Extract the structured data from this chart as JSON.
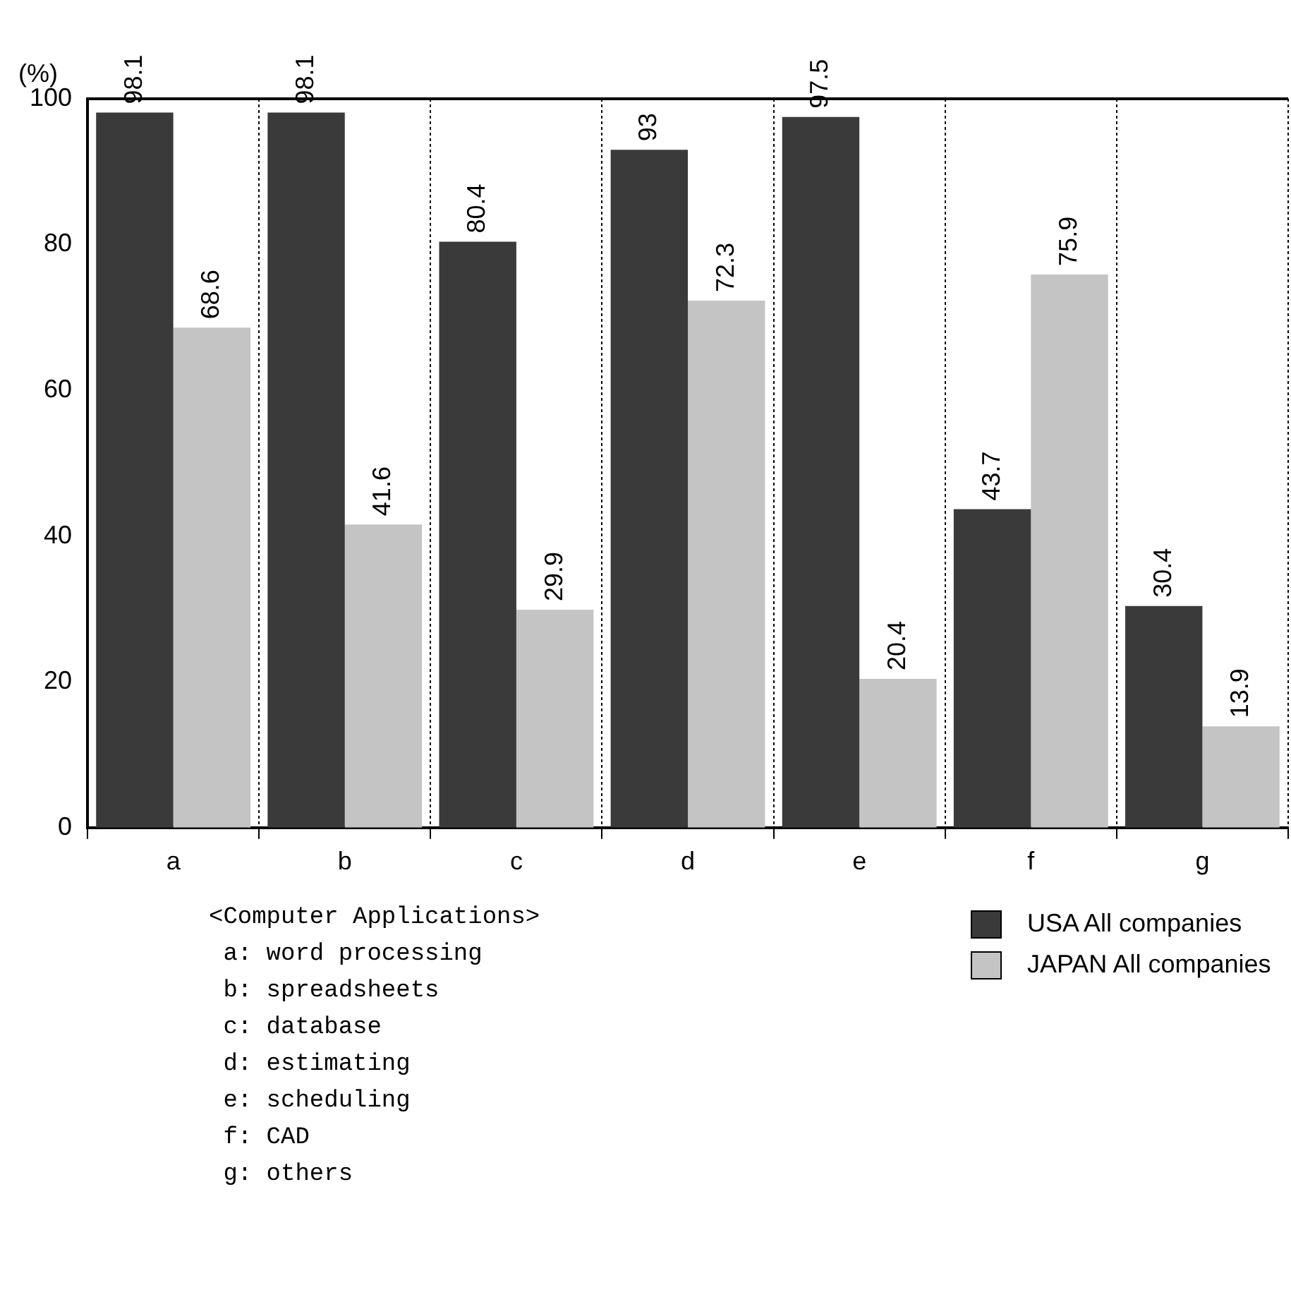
{
  "chart_data": {
    "type": "bar",
    "ylabel": "(%)",
    "categories": [
      "a",
      "b",
      "c",
      "d",
      "e",
      "f",
      "g"
    ],
    "series": [
      {
        "name": "USA All companies",
        "color": "#3a3a3a",
        "values": [
          98.1,
          98.1,
          80.4,
          93,
          97.5,
          43.7,
          30.4
        ]
      },
      {
        "name": "JAPAN All companies",
        "color": "#c4c4c4",
        "values": [
          68.6,
          41.6,
          29.9,
          72.3,
          20.4,
          75.9,
          13.9
        ]
      }
    ],
    "ylim": [
      0,
      100
    ],
    "yticks": [
      0,
      20,
      40,
      60,
      80,
      100
    ],
    "grid": "x",
    "data_labels": true,
    "legend": "bottom right",
    "annotations": [
      "<Computer Applications>",
      " a: word processing",
      " b: spreadsheets",
      " c: database",
      " d: estimating",
      " e: scheduling",
      " f: CAD",
      " g: others"
    ]
  }
}
